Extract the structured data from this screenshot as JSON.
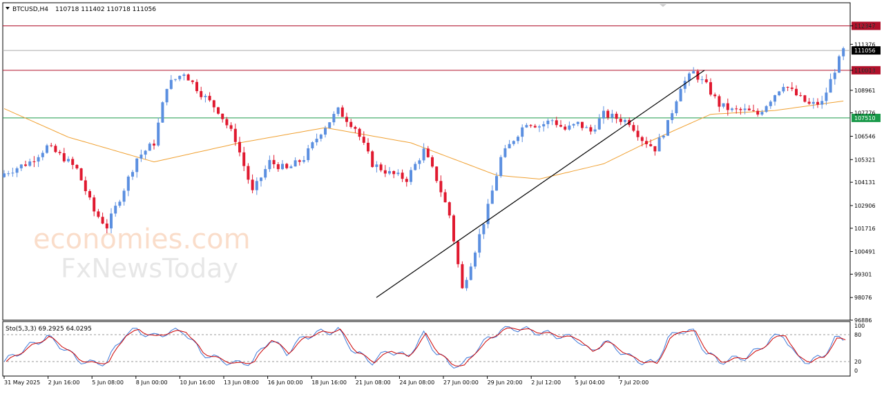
{
  "header": {
    "symbol": "BTCUSD,H4",
    "ohlc": "110718 111402 110718 111056"
  },
  "watermark": {
    "line1": "economies.com",
    "line2": "FxNewsToday"
  },
  "colors": {
    "bull": "#5b8fe0",
    "bear": "#e0192f",
    "ma": "#f0a030",
    "resistance": "#b0102a",
    "support": "#1a9a4a",
    "current": "#aaaaaa",
    "trend": "#000000",
    "sto_main": "#3c78d8",
    "sto_signal": "#cc0000"
  },
  "chart_data": [
    {
      "type": "candlestick",
      "timeframe": "H4",
      "ylim": [
        96886,
        113560
      ],
      "y_ticks": [
        112347,
        111376,
        110013,
        108961,
        107776,
        106546,
        105321,
        104131,
        102906,
        101716,
        100491,
        99301,
        98076,
        96886
      ],
      "x_ticks": [
        "31 May 2025",
        "2 Jun 16:00",
        "5 Jun 08:00",
        "8 Jun 00:00",
        "10 Jun 16:00",
        "13 Jun 08:00",
        "16 Jun 00:00",
        "18 Jun 16:00",
        "21 Jun 08:00",
        "24 Jun 08:00",
        "27 Jun 00:00",
        "29 Jun 20:00",
        "2 Jul 12:00",
        "5 Jul 04:00",
        "7 Jul 20:00"
      ],
      "price_levels": [
        {
          "label": "112347",
          "value": 112347,
          "kind": "resistance"
        },
        {
          "label": "111056",
          "value": 111056,
          "kind": "current"
        },
        {
          "label": "110013",
          "value": 110013,
          "kind": "resistance"
        },
        {
          "label": "107510",
          "value": 107510,
          "kind": "support"
        }
      ],
      "trendline": {
        "from": [
          98076,
          98076
        ],
        "to": [
          110013,
          110013
        ]
      },
      "close_path": [
        [
          0,
          104600
        ],
        [
          6,
          105200
        ],
        [
          10,
          106000
        ],
        [
          14,
          105400
        ],
        [
          17,
          104800
        ],
        [
          21,
          102600
        ],
        [
          24,
          101800
        ],
        [
          28,
          103800
        ],
        [
          31,
          105400
        ],
        [
          35,
          106200
        ],
        [
          38,
          109200
        ],
        [
          42,
          109900
        ],
        [
          46,
          108800
        ],
        [
          50,
          107900
        ],
        [
          54,
          106400
        ],
        [
          58,
          103600
        ],
        [
          62,
          105200
        ],
        [
          66,
          104800
        ],
        [
          70,
          105400
        ],
        [
          74,
          106800
        ],
        [
          78,
          107900
        ],
        [
          82,
          107000
        ],
        [
          86,
          105100
        ],
        [
          90,
          104600
        ],
        [
          94,
          104300
        ],
        [
          98,
          105800
        ],
        [
          101,
          104300
        ],
        [
          104,
          102400
        ],
        [
          107,
          98500
        ],
        [
          110,
          100600
        ],
        [
          113,
          102800
        ],
        [
          116,
          105400
        ],
        [
          119,
          106400
        ],
        [
          122,
          107300
        ],
        [
          125,
          107100
        ],
        [
          128,
          107400
        ],
        [
          131,
          106900
        ],
        [
          134,
          107200
        ],
        [
          137,
          106800
        ],
        [
          140,
          107700
        ],
        [
          143,
          107500
        ],
        [
          146,
          107300
        ],
        [
          149,
          106400
        ],
        [
          152,
          105900
        ],
        [
          155,
          107200
        ],
        [
          158,
          109200
        ],
        [
          161,
          109900
        ],
        [
          164,
          109200
        ],
        [
          167,
          108200
        ],
        [
          170,
          107900
        ],
        [
          173,
          107900
        ],
        [
          176,
          107700
        ],
        [
          179,
          108500
        ],
        [
          182,
          109300
        ],
        [
          185,
          108700
        ],
        [
          188,
          108200
        ],
        [
          191,
          108300
        ],
        [
          194,
          110050
        ],
        [
          196,
          111056
        ]
      ],
      "ma_path": [
        [
          0,
          108000
        ],
        [
          15,
          106500
        ],
        [
          35,
          105200
        ],
        [
          55,
          106200
        ],
        [
          75,
          107000
        ],
        [
          95,
          106200
        ],
        [
          115,
          104500
        ],
        [
          125,
          104300
        ],
        [
          140,
          105100
        ],
        [
          150,
          106200
        ],
        [
          165,
          107700
        ],
        [
          180,
          107900
        ],
        [
          196,
          108400
        ]
      ]
    },
    {
      "type": "line",
      "title": "Sto(5,3,3) 69.2925 64.0295",
      "ylim": [
        0,
        100
      ],
      "y_ticks": [
        100,
        80,
        20,
        0
      ],
      "levels": [
        80,
        20
      ],
      "series_values": [
        [
          0,
          20
        ],
        [
          6,
          55
        ],
        [
          10,
          75
        ],
        [
          14,
          50
        ],
        [
          17,
          25
        ],
        [
          21,
          15
        ],
        [
          24,
          20
        ],
        [
          28,
          80
        ],
        [
          31,
          90
        ],
        [
          35,
          75
        ],
        [
          38,
          85
        ],
        [
          42,
          88
        ],
        [
          46,
          40
        ],
        [
          50,
          25
        ],
        [
          54,
          15
        ],
        [
          58,
          20
        ],
        [
          62,
          70
        ],
        [
          66,
          40
        ],
        [
          70,
          75
        ],
        [
          74,
          85
        ],
        [
          78,
          90
        ],
        [
          82,
          40
        ],
        [
          86,
          20
        ],
        [
          90,
          45
        ],
        [
          94,
          30
        ],
        [
          98,
          80
        ],
        [
          101,
          40
        ],
        [
          104,
          15
        ],
        [
          107,
          10
        ],
        [
          110,
          45
        ],
        [
          113,
          70
        ],
        [
          116,
          90
        ],
        [
          119,
          95
        ],
        [
          122,
          90
        ],
        [
          125,
          85
        ],
        [
          128,
          80
        ],
        [
          131,
          75
        ],
        [
          134,
          70
        ],
        [
          137,
          40
        ],
        [
          140,
          65
        ],
        [
          143,
          50
        ],
        [
          146,
          30
        ],
        [
          149,
          20
        ],
        [
          152,
          15
        ],
        [
          155,
          70
        ],
        [
          158,
          90
        ],
        [
          161,
          85
        ],
        [
          164,
          40
        ],
        [
          167,
          20
        ],
        [
          170,
          25
        ],
        [
          173,
          30
        ],
        [
          176,
          45
        ],
        [
          179,
          70
        ],
        [
          182,
          80
        ],
        [
          185,
          30
        ],
        [
          188,
          20
        ],
        [
          191,
          30
        ],
        [
          194,
          70
        ],
        [
          196,
          69.2925
        ]
      ]
    }
  ]
}
